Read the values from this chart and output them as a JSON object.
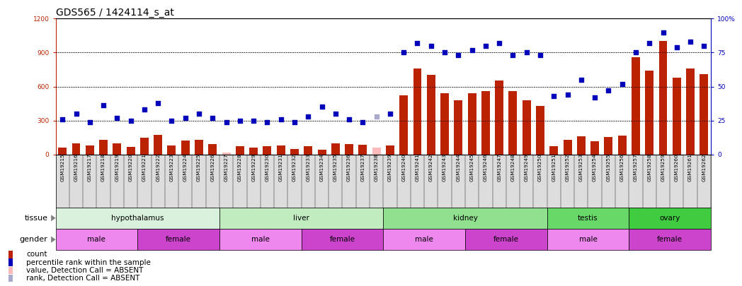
{
  "title": "GDS565 / 1424114_s_at",
  "samples": [
    "GSM19215",
    "GSM19216",
    "GSM19217",
    "GSM19218",
    "GSM19219",
    "GSM19220",
    "GSM19221",
    "GSM19222",
    "GSM19223",
    "GSM19224",
    "GSM19225",
    "GSM19226",
    "GSM19227",
    "GSM19228",
    "GSM19229",
    "GSM19230",
    "GSM19231",
    "GSM19232",
    "GSM19233",
    "GSM19234",
    "GSM19235",
    "GSM19236",
    "GSM19237",
    "GSM19238",
    "GSM19239",
    "GSM19240",
    "GSM19241",
    "GSM19242",
    "GSM19243",
    "GSM19244",
    "GSM19245",
    "GSM19246",
    "GSM19247",
    "GSM19248",
    "GSM19249",
    "GSM19250",
    "GSM19251",
    "GSM19252",
    "GSM19253",
    "GSM19254",
    "GSM19255",
    "GSM19256",
    "GSM19257",
    "GSM19258",
    "GSM19259",
    "GSM19260",
    "GSM19261",
    "GSM19262"
  ],
  "bar_values": [
    60,
    100,
    80,
    130,
    95,
    65,
    150,
    175,
    80,
    120,
    130,
    90,
    15,
    70,
    60,
    70,
    80,
    50,
    75,
    40,
    100,
    90,
    85,
    60,
    80,
    520,
    760,
    700,
    540,
    480,
    540,
    560,
    650,
    560,
    480,
    430,
    75,
    130,
    160,
    115,
    155,
    165,
    860,
    740,
    1000,
    680,
    760,
    710
  ],
  "bar_absent": [
    false,
    false,
    false,
    false,
    false,
    false,
    false,
    false,
    false,
    false,
    false,
    false,
    true,
    false,
    false,
    false,
    false,
    false,
    false,
    false,
    false,
    false,
    false,
    true,
    false,
    false,
    false,
    false,
    false,
    false,
    false,
    false,
    false,
    false,
    false,
    false,
    false,
    false,
    false,
    false,
    false,
    false,
    false,
    false,
    false,
    false,
    false,
    false
  ],
  "rank_values": [
    26,
    30,
    24,
    36,
    27,
    25,
    33,
    38,
    25,
    27,
    30,
    27,
    24,
    25,
    25,
    24,
    26,
    24,
    28,
    35,
    30,
    26,
    24,
    28,
    30,
    75,
    82,
    80,
    75,
    73,
    77,
    80,
    82,
    73,
    75,
    73,
    43,
    44,
    55,
    42,
    47,
    52,
    75,
    82,
    90,
    79,
    83,
    80
  ],
  "rank_absent": [
    false,
    false,
    false,
    false,
    false,
    false,
    false,
    false,
    false,
    false,
    false,
    false,
    false,
    false,
    false,
    false,
    false,
    false,
    false,
    false,
    false,
    false,
    false,
    true,
    false,
    false,
    false,
    false,
    false,
    false,
    false,
    false,
    false,
    false,
    false,
    false,
    false,
    false,
    false,
    false,
    false,
    false,
    false,
    false,
    false,
    false,
    false,
    false
  ],
  "tissues": [
    {
      "label": "hypothalamus",
      "start": 0,
      "end": 12,
      "color": "#d8f0dc"
    },
    {
      "label": "liver",
      "start": 12,
      "end": 24,
      "color": "#c0ecc0"
    },
    {
      "label": "kidney",
      "start": 24,
      "end": 36,
      "color": "#90e090"
    },
    {
      "label": "testis",
      "start": 36,
      "end": 42,
      "color": "#68d868"
    },
    {
      "label": "ovary",
      "start": 42,
      "end": 48,
      "color": "#40cc40"
    }
  ],
  "genders": [
    {
      "label": "male",
      "start": 0,
      "end": 6
    },
    {
      "label": "female",
      "start": 6,
      "end": 12
    },
    {
      "label": "male",
      "start": 12,
      "end": 18
    },
    {
      "label": "female",
      "start": 18,
      "end": 24
    },
    {
      "label": "male",
      "start": 24,
      "end": 30
    },
    {
      "label": "female",
      "start": 30,
      "end": 36
    },
    {
      "label": "male",
      "start": 36,
      "end": 42
    },
    {
      "label": "female",
      "start": 42,
      "end": 48
    }
  ],
  "male_color": "#ee88ee",
  "female_color": "#cc44cc",
  "ylim_left": [
    0,
    1200
  ],
  "ylim_right": [
    0,
    100
  ],
  "yticks_left": [
    0,
    300,
    600,
    900,
    1200
  ],
  "yticks_right": [
    0,
    25,
    50,
    75,
    100
  ],
  "bar_color": "#bb2200",
  "bar_absent_color": "#ffbbbb",
  "dot_color": "#0000bb",
  "dot_absent_color": "#aaaacc",
  "dot_size": 14,
  "bar_width": 0.62,
  "bg_color": "#ffffff",
  "xtick_bg_color": "#dddddd",
  "title_fontsize": 10,
  "tick_fontsize": 6.5,
  "sample_fontsize": 5.2,
  "row_label_fontsize": 8,
  "row_text_fontsize": 7.5,
  "legend_fontsize": 7.5
}
